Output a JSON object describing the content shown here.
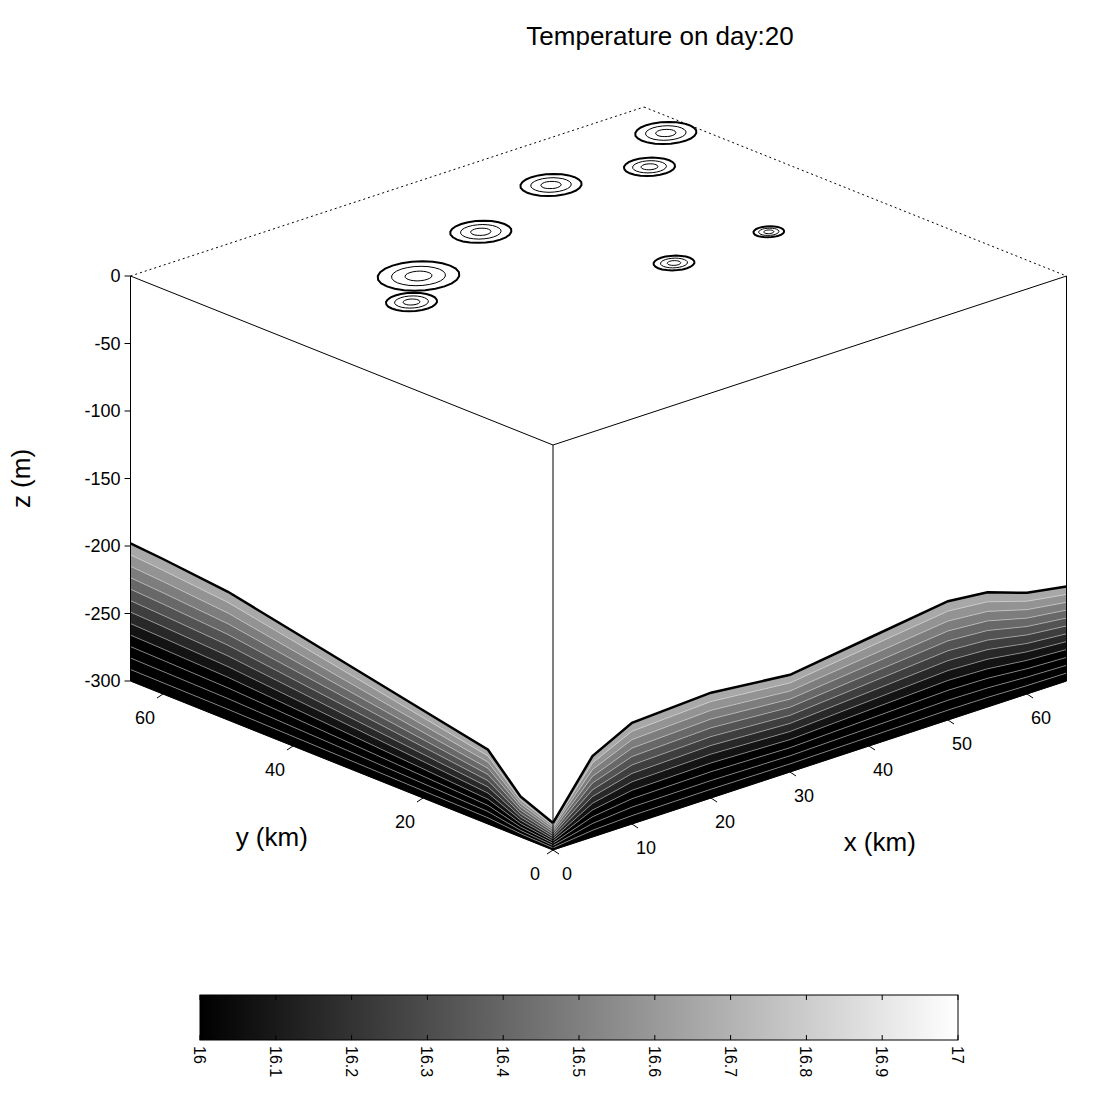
{
  "chart_data": {
    "type": "contour",
    "title": "Temperature on day:20",
    "x_label": "x (km)",
    "y_label": "y (km)",
    "z_label": "z (m)",
    "xlim": [
      0,
      65
    ],
    "xticks": [
      0,
      10,
      20,
      30,
      40,
      50,
      60
    ],
    "ylim": [
      0,
      65
    ],
    "yticks": [
      0,
      20,
      40,
      60
    ],
    "zlim": [
      -300,
      0
    ],
    "zticks": [
      0,
      -50,
      -100,
      -150,
      -200,
      -250,
      -300
    ],
    "colorbar_lim": [
      16,
      17
    ],
    "colorbar_ticks": [
      16,
      16.1,
      16.2,
      16.3,
      16.4,
      16.5,
      16.6,
      16.7,
      16.8,
      16.9,
      17
    ],
    "mixed_layer_temperature": 17,
    "thermocline_temperature": 16.7,
    "bottom_temperature": 16,
    "mixed_layer_depth_x": {
      "x": [
        0,
        5,
        10,
        20,
        30,
        40,
        50,
        55,
        60,
        65
      ],
      "z": [
        -280,
        -240,
        -225,
        -222,
        -228,
        -220,
        -212,
        -215,
        -225,
        -230
      ]
    },
    "mixed_layer_depth_y": {
      "y": [
        0,
        5,
        10,
        20,
        30,
        40,
        50,
        60,
        65
      ],
      "z": [
        -280,
        -270,
        -245,
        -235,
        -225,
        -215,
        -205,
        -200,
        -198
      ]
    },
    "eddies": [
      {
        "x": 32,
        "y": 50,
        "radius": 3
      },
      {
        "x": 20,
        "y": 45,
        "radius": 4
      },
      {
        "x": 45,
        "y": 55,
        "radius": 3
      },
      {
        "x": 55,
        "y": 52,
        "radius": 2.5
      },
      {
        "x": 62,
        "y": 58,
        "radius": 3
      },
      {
        "x": 40,
        "y": 30,
        "radius": 2
      },
      {
        "x": 52,
        "y": 30,
        "radius": 1.5
      },
      {
        "x": 15,
        "y": 40,
        "radius": 2.5
      }
    ]
  }
}
